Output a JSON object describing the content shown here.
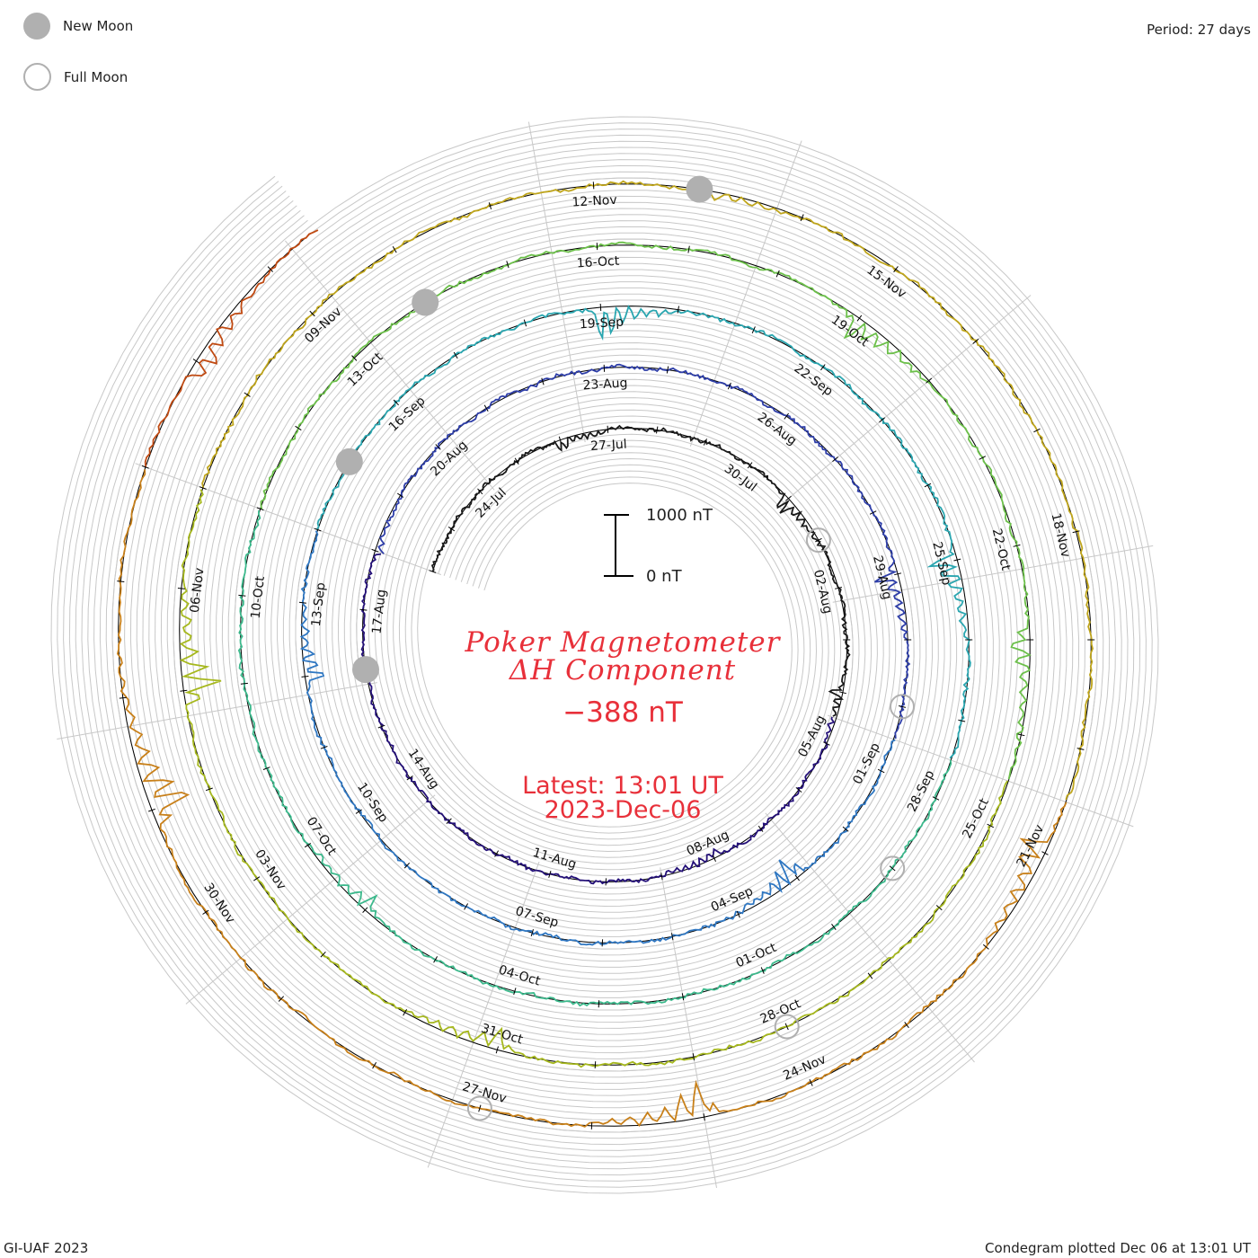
{
  "legend": {
    "new_moon": "New Moon",
    "full_moon": "Full Moon"
  },
  "period_label": "Period: 27 days",
  "title_line1": "Poker Magnetometer",
  "title_line2": "ΔH Component",
  "current_value": "−388 nT",
  "latest_line1": "Latest: 13:01 UT",
  "latest_line2": "2023-Dec-06",
  "scale": {
    "top": "1000 nT",
    "bottom": "0 nT"
  },
  "footer_left": "GI-UAF 2023",
  "footer_right": "Condegram plotted Dec 06 at 13:01 UT",
  "colors": {
    "text_red": "#e8303a",
    "grid": "#c8c8c8",
    "baseline": "#000000",
    "moon": "#b0b0b0"
  },
  "chart_data": {
    "type": "line",
    "title": "Poker Magnetometer ΔH Component",
    "period_days": 27,
    "start_date": "2023-07-22",
    "end_date": "2023-12-06",
    "units": "nT",
    "scale_bar_nT": [
      0,
      1000
    ],
    "cycles": [
      {
        "start": "2023-07-22",
        "color": "#101010"
      },
      {
        "start": "2023-08-18",
        "color": "#2a1a8a"
      },
      {
        "start": "2023-09-14",
        "color": "#2f57c0"
      },
      {
        "start": "2023-10-11",
        "color": "#2aa6a0"
      },
      {
        "start": "2023-11-07",
        "color": "#5cba3c"
      },
      {
        "start": "2023-12-04",
        "color": "#b9a81c"
      }
    ],
    "series_color_sequence": [
      "#1a1a1a",
      "#241078",
      "#2e3ea8",
      "#2f77c2",
      "#2aa6b0",
      "#3cb98c",
      "#6cc04a",
      "#a6b81e",
      "#bfa51c",
      "#c8801a",
      "#c04a12",
      "#c01010"
    ],
    "date_ticks": [
      {
        "label": "24-Jul"
      },
      {
        "label": "27-Jul"
      },
      {
        "label": "30-Jul"
      },
      {
        "label": "02-Aug"
      },
      {
        "label": "05-Aug"
      },
      {
        "label": "08-Aug"
      },
      {
        "label": "11-Aug"
      },
      {
        "label": "14-Aug"
      },
      {
        "label": "17-Aug"
      },
      {
        "label": "20-Aug"
      },
      {
        "label": "23-Aug"
      },
      {
        "label": "26-Aug"
      },
      {
        "label": "29-Aug"
      },
      {
        "label": "01-Sep"
      },
      {
        "label": "04-Sep"
      },
      {
        "label": "07-Sep"
      },
      {
        "label": "10-Sep"
      },
      {
        "label": "13-Sep"
      },
      {
        "label": "16-Sep"
      },
      {
        "label": "19-Sep"
      },
      {
        "label": "22-Sep"
      },
      {
        "label": "25-Sep"
      },
      {
        "label": "28-Sep"
      },
      {
        "label": "01-Oct"
      },
      {
        "label": "04-Oct"
      },
      {
        "label": "07-Oct"
      },
      {
        "label": "10-Oct"
      },
      {
        "label": "13-Oct"
      },
      {
        "label": "16-Oct"
      },
      {
        "label": "19-Oct"
      },
      {
        "label": "22-Oct"
      },
      {
        "label": "25-Oct"
      },
      {
        "label": "28-Oct"
      },
      {
        "label": "31-Oct"
      },
      {
        "label": "03-Nov"
      },
      {
        "label": "06-Nov"
      },
      {
        "label": "09-Nov"
      },
      {
        "label": "12-Nov"
      },
      {
        "label": "15-Nov"
      },
      {
        "label": "18-Nov"
      },
      {
        "label": "21-Nov"
      },
      {
        "label": "24-Nov"
      },
      {
        "label": "27-Nov"
      },
      {
        "label": "30-Nov"
      }
    ],
    "new_moons": [
      "2023-08-16",
      "2023-09-15",
      "2023-10-14",
      "2023-11-13"
    ],
    "full_moons": [
      "2023-08-01",
      "2023-08-31",
      "2023-09-29",
      "2023-10-28",
      "2023-11-27"
    ],
    "disturbances": [
      {
        "date": "2023-07-26",
        "nT": -220
      },
      {
        "date": "2023-07-31",
        "nT": -330
      },
      {
        "date": "2023-08-04",
        "nT": -260
      },
      {
        "date": "2023-08-08",
        "nT": -180
      },
      {
        "date": "2023-08-18",
        "nT": -150
      },
      {
        "date": "2023-08-29",
        "nT": -420
      },
      {
        "date": "2023-09-03",
        "nT": -480
      },
      {
        "date": "2023-09-12",
        "nT": -380
      },
      {
        "date": "2023-09-19",
        "nT": -600
      },
      {
        "date": "2023-09-25",
        "nT": -520
      },
      {
        "date": "2023-10-06",
        "nT": -300
      },
      {
        "date": "2023-10-19",
        "nT": -450
      },
      {
        "date": "2023-10-23",
        "nT": -400
      },
      {
        "date": "2023-10-31",
        "nT": -380
      },
      {
        "date": "2023-11-05",
        "nT": -700
      },
      {
        "date": "2023-11-13",
        "nT": -250
      },
      {
        "date": "2023-11-21",
        "nT": -500
      },
      {
        "date": "2023-11-25",
        "nT": -620
      },
      {
        "date": "2023-12-01",
        "nT": -780
      },
      {
        "date": "2023-12-05",
        "nT": -420
      }
    ],
    "latest_nT": -388
  }
}
